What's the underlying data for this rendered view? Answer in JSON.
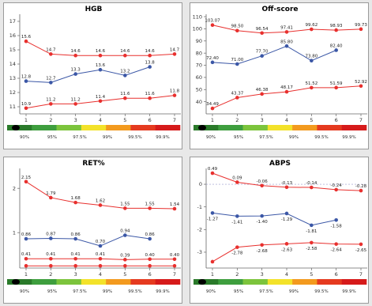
{
  "scale": {
    "percent_labels": [
      "90%",
      "95%",
      "97.5%",
      "99%",
      "99.5%",
      "99.9%"
    ],
    "colors": [
      "#2a7a2a",
      "#3e9e3e",
      "#7cc43c",
      "#f3e22a",
      "#f39a1e",
      "#e53a1f",
      "#d61a1a"
    ]
  },
  "series_colors": {
    "red": "#e8302e",
    "blue": "#3b57a6"
  },
  "chart_data": [
    {
      "id": "hgb",
      "type": "line",
      "title": "HGB",
      "x": [
        1,
        2,
        3,
        4,
        5,
        6,
        7
      ],
      "xticks": [
        "1",
        "2",
        "3",
        "4",
        "5",
        "6",
        "7"
      ],
      "ylim": [
        10.5,
        17.5
      ],
      "yticks": [
        "11",
        "12",
        "13",
        "14",
        "15",
        "16",
        "17"
      ],
      "ytick_values": [
        11,
        12,
        13,
        14,
        15,
        16,
        17
      ],
      "series": [
        {
          "color": "red",
          "values": [
            15.6,
            14.7,
            14.6,
            14.6,
            14.6,
            14.6,
            14.7
          ],
          "labels": [
            "15.6",
            "14.7",
            "14.6",
            "14.6",
            "14.6",
            "14.6",
            "14.7"
          ],
          "pos": "above"
        },
        {
          "color": "blue",
          "values": [
            12.8,
            12.7,
            13.3,
            13.6,
            13.2,
            13.8,
            null
          ],
          "labels": [
            "12.8",
            "12.7",
            "13.3",
            "13.6",
            "13.2",
            "13.8",
            ""
          ],
          "pos": "above"
        },
        {
          "color": "red",
          "values": [
            10.9,
            11.2,
            11.2,
            11.4,
            11.6,
            11.6,
            11.8
          ],
          "labels": [
            "10.9",
            "11.2",
            "11.2",
            "11.4",
            "11.6",
            "11.6",
            "11.8"
          ],
          "pos": "above"
        }
      ]
    },
    {
      "id": "offscore",
      "type": "line",
      "title": "Off-score",
      "x": [
        1,
        2,
        3,
        4,
        5,
        6,
        7
      ],
      "xticks": [
        "1",
        "2",
        "3",
        "4",
        "5",
        "6",
        "7"
      ],
      "ylim": [
        30,
        112
      ],
      "yticks": [
        "40",
        "50",
        "60",
        "70",
        "80",
        "90",
        "100",
        "110"
      ],
      "ytick_values": [
        40,
        50,
        60,
        70,
        80,
        90,
        100,
        110
      ],
      "series": [
        {
          "color": "red",
          "values": [
            103.07,
            98.5,
            96.54,
            97.41,
            99.62,
            98.93,
            99.73
          ],
          "labels": [
            "103.07",
            "98.50",
            "96.54",
            "97.41",
            "99.62",
            "98.93",
            "99.73"
          ],
          "pos": "above"
        },
        {
          "color": "blue",
          "values": [
            72.4,
            71.0,
            77.7,
            85.8,
            73.8,
            82.4,
            null
          ],
          "labels": [
            "72.40",
            "71.00",
            "77.70",
            "85.80",
            "73.80",
            "82.40",
            ""
          ],
          "pos": "above"
        },
        {
          "color": "red",
          "values": [
            34.49,
            43.37,
            46.38,
            48.17,
            51.52,
            51.59,
            52.92
          ],
          "labels": [
            "34.49",
            "43.37",
            "46.38",
            "48.17",
            "51.52",
            "51.59",
            "52.92"
          ],
          "pos": "above"
        }
      ]
    },
    {
      "id": "ret",
      "type": "line",
      "title": "RET%",
      "x": [
        1,
        2,
        3,
        4,
        5,
        6,
        7
      ],
      "xticks": [
        "1",
        "2",
        "3",
        "4",
        "5",
        "6",
        "7"
      ],
      "ylim": [
        0.2,
        2.45
      ],
      "yticks": [
        "1",
        "2"
      ],
      "ytick_values": [
        1,
        2
      ],
      "series": [
        {
          "color": "red",
          "values": [
            2.15,
            1.79,
            1.68,
            1.62,
            1.55,
            1.55,
            1.54
          ],
          "labels": [
            "2.15",
            "1.79",
            "1.68",
            "1.62",
            "1.55",
            "1.55",
            "1.54"
          ],
          "pos": "above"
        },
        {
          "color": "blue",
          "values": [
            0.86,
            0.87,
            0.86,
            0.7,
            0.94,
            0.86,
            null
          ],
          "labels": [
            "0.86",
            "0.87",
            "0.86",
            "0.70",
            "0.94",
            "0.86",
            ""
          ],
          "pos": "above"
        },
        {
          "color": "red",
          "values": [
            0.41,
            0.41,
            0.41,
            0.41,
            0.39,
            0.4,
            0.4
          ],
          "labels": [
            "0.41",
            "0.41",
            "0.41",
            "0.41",
            "0.39",
            "0.40",
            "0.40"
          ],
          "pos": "above"
        },
        {
          "color": "red",
          "values": [
            0.25,
            0.25,
            0.25,
            0.25,
            0.25,
            0.25,
            0.25
          ],
          "labels": [
            "",
            "",
            "",
            "",
            "",
            "",
            ""
          ],
          "pos": "above"
        }
      ]
    },
    {
      "id": "abps",
      "type": "line",
      "title": "ABPS",
      "x": [
        1,
        2,
        3,
        4,
        5,
        6,
        7
      ],
      "xticks": [
        "1",
        "2",
        "3",
        "4",
        "5",
        "6",
        "7"
      ],
      "ylim": [
        -3.7,
        0.7
      ],
      "yticks": [
        "-3",
        "-2",
        "-1",
        "0"
      ],
      "ytick_values": [
        -3,
        -2,
        -1,
        0
      ],
      "zero_line": true,
      "series": [
        {
          "color": "red",
          "values": [
            0.49,
            0.09,
            -0.06,
            -0.13,
            -0.14,
            -0.24,
            -0.28
          ],
          "labels": [
            "0.49",
            "0.09",
            "-0.06",
            "-0.13",
            "-0.14",
            "-0.24",
            "-0.28"
          ],
          "pos": "above"
        },
        {
          "color": "blue",
          "values": [
            -1.27,
            -1.41,
            -1.4,
            -1.29,
            -1.81,
            -1.58,
            null
          ],
          "labels": [
            "-1.27",
            "-1.41",
            "-1.40",
            "-1.29",
            "-1.81",
            "-1.58",
            ""
          ],
          "pos": "below"
        },
        {
          "color": "red",
          "values": [
            -3.42,
            -2.78,
            -2.68,
            -2.63,
            -2.58,
            -2.64,
            -2.65
          ],
          "labels": [
            "",
            "-2.78",
            "-2.68",
            "-2.63",
            "-2.58",
            "-2.64",
            "-2.65"
          ],
          "pos": "below"
        }
      ]
    }
  ]
}
